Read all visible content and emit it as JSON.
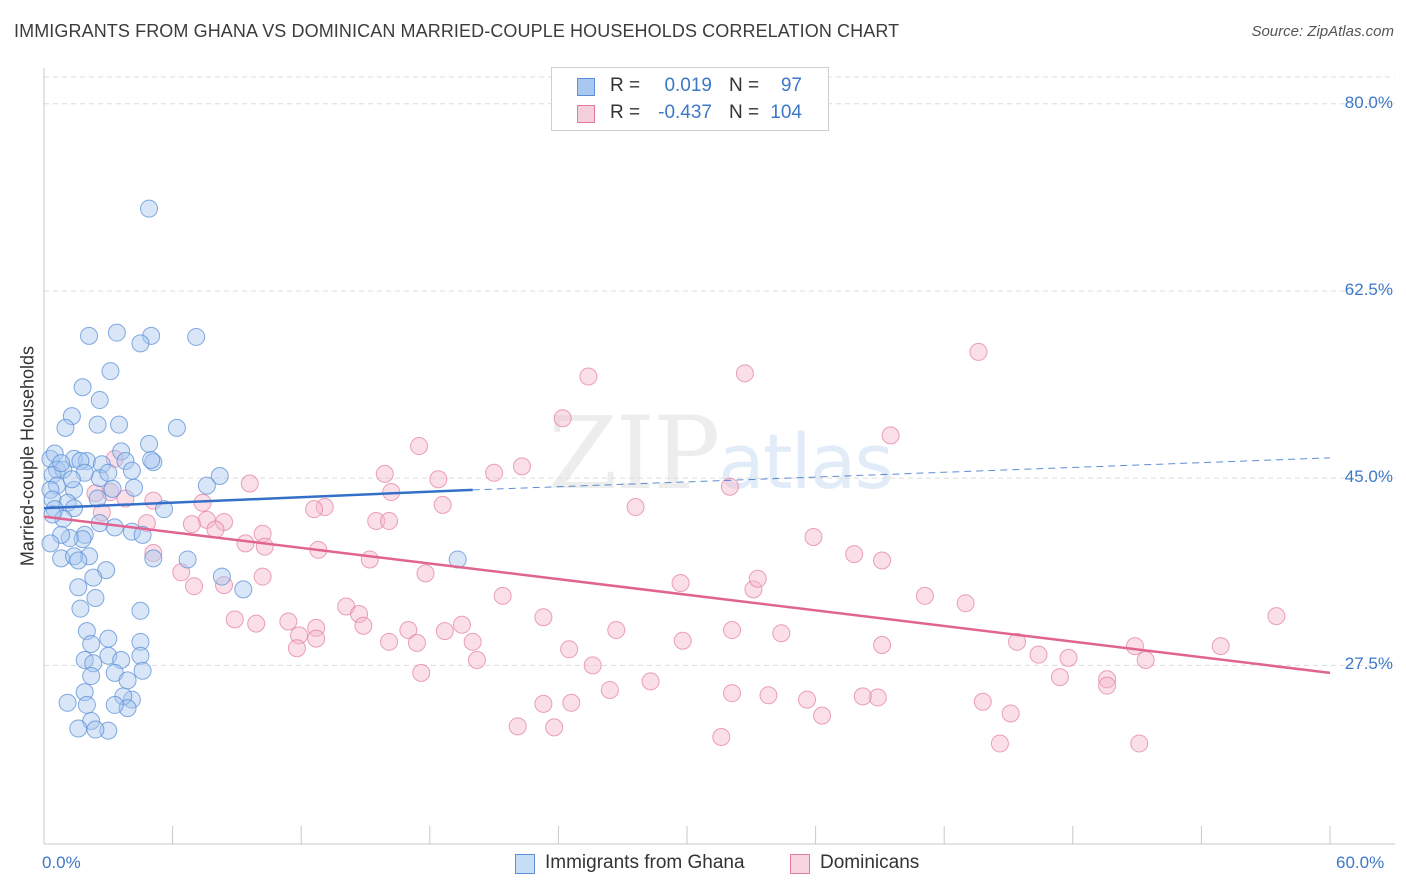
{
  "title": "IMMIGRANTS FROM GHANA VS DOMINICAN MARRIED-COUPLE HOUSEHOLDS CORRELATION CHART",
  "source": "Source: ZipAtlas.com",
  "watermark": {
    "zip": "ZIP",
    "atlas": "atlas"
  },
  "legend": {
    "rows": [
      {
        "r_label": "R =",
        "r_value": "0.019",
        "n_label": "N =",
        "n_value": "97",
        "color": "#a8c8ef"
      },
      {
        "r_label": "R =",
        "r_value": "-0.437",
        "n_label": "N =",
        "n_value": "104",
        "color": "#f5b8cc"
      }
    ]
  },
  "bottom_legend": [
    {
      "label": "Immigrants from Ghana",
      "color": "#a8c8ef"
    },
    {
      "label": "Dominicans",
      "color": "#f5b8cc"
    }
  ],
  "chart_data": {
    "type": "scatter",
    "title": "IMMIGRANTS FROM GHANA VS DOMINICAN MARRIED-COUPLE HOUSEHOLDS CORRELATION CHART",
    "xlabel": "",
    "ylabel": "Married-couple Households",
    "xlim": [
      0,
      60
    ],
    "ylim": [
      10.8,
      82.5
    ],
    "x_tick_labels": [
      "0.0%",
      "60.0%"
    ],
    "y_ticks": [
      27.5,
      45.0,
      62.5,
      80.0
    ],
    "y_tick_labels": [
      "27.5%",
      "45.0%",
      "62.5%",
      "80.0%"
    ],
    "grid": true,
    "legend_position": "top-center",
    "colors": {
      "blue_fill": "#a8c8ef",
      "blue_edge": "#5b8fd6",
      "blue_line": "#3470c8",
      "pink_fill": "#f5b8cc",
      "pink_edge": "#e27aa0",
      "pink_line": "#e0648f"
    },
    "series": [
      {
        "name": "Immigrants from Ghana",
        "trend": {
          "x": [
            0,
            20
          ],
          "y": [
            42.2,
            43.9
          ],
          "dashed_to": [
            60,
            46.9
          ]
        },
        "points": [
          [
            4.9,
            70.2
          ],
          [
            3.4,
            58.6
          ],
          [
            2.1,
            58.3
          ],
          [
            5.0,
            58.3
          ],
          [
            7.1,
            58.2
          ],
          [
            4.5,
            57.6
          ],
          [
            3.1,
            55.0
          ],
          [
            1.8,
            53.5
          ],
          [
            2.6,
            52.3
          ],
          [
            1.3,
            50.8
          ],
          [
            2.5,
            50.0
          ],
          [
            3.5,
            50.0
          ],
          [
            1.0,
            49.7
          ],
          [
            6.2,
            49.7
          ],
          [
            4.9,
            48.2
          ],
          [
            3.6,
            47.5
          ],
          [
            1.4,
            46.8
          ],
          [
            2.0,
            46.6
          ],
          [
            1.7,
            46.6
          ],
          [
            0.3,
            46.8
          ],
          [
            3.8,
            46.6
          ],
          [
            5.1,
            46.5
          ],
          [
            2.7,
            46.3
          ],
          [
            0.6,
            45.8
          ],
          [
            0.9,
            45.8
          ],
          [
            4.1,
            45.7
          ],
          [
            0.4,
            45.3
          ],
          [
            8.2,
            45.2
          ],
          [
            2.6,
            45.0
          ],
          [
            4.2,
            44.1
          ],
          [
            0.6,
            44.3
          ],
          [
            0.3,
            43.9
          ],
          [
            1.4,
            43.9
          ],
          [
            3.2,
            44.0
          ],
          [
            7.6,
            44.3
          ],
          [
            0.4,
            43.0
          ],
          [
            2.5,
            43.1
          ],
          [
            1.1,
            42.7
          ],
          [
            1.4,
            42.2
          ],
          [
            5.6,
            42.1
          ],
          [
            0.5,
            42.1
          ],
          [
            0.9,
            41.2
          ],
          [
            4.1,
            40.0
          ],
          [
            0.4,
            41.6
          ],
          [
            2.6,
            40.8
          ],
          [
            1.9,
            39.7
          ],
          [
            1.8,
            39.3
          ],
          [
            1.2,
            39.4
          ],
          [
            0.8,
            39.7
          ],
          [
            3.3,
            40.4
          ],
          [
            4.6,
            39.7
          ],
          [
            0.3,
            38.9
          ],
          [
            2.1,
            37.7
          ],
          [
            6.7,
            37.4
          ],
          [
            0.8,
            37.5
          ],
          [
            1.4,
            37.7
          ],
          [
            2.9,
            36.4
          ],
          [
            1.6,
            37.3
          ],
          [
            5.1,
            37.5
          ],
          [
            2.3,
            35.7
          ],
          [
            1.6,
            34.8
          ],
          [
            8.3,
            35.8
          ],
          [
            2.4,
            33.8
          ],
          [
            1.7,
            32.8
          ],
          [
            4.5,
            32.6
          ],
          [
            2.0,
            30.7
          ],
          [
            3.0,
            30.0
          ],
          [
            2.2,
            29.5
          ],
          [
            4.5,
            29.7
          ],
          [
            3.0,
            28.4
          ],
          [
            1.9,
            28.0
          ],
          [
            3.6,
            28.0
          ],
          [
            4.5,
            28.4
          ],
          [
            2.3,
            27.7
          ],
          [
            4.6,
            27.0
          ],
          [
            2.2,
            26.5
          ],
          [
            3.3,
            26.8
          ],
          [
            3.9,
            26.1
          ],
          [
            1.9,
            25.0
          ],
          [
            4.1,
            24.3
          ],
          [
            3.7,
            24.6
          ],
          [
            2.0,
            23.8
          ],
          [
            1.1,
            24.0
          ],
          [
            3.9,
            23.5
          ],
          [
            3.3,
            23.8
          ],
          [
            2.2,
            22.3
          ],
          [
            1.6,
            21.6
          ],
          [
            3.0,
            21.4
          ],
          [
            2.4,
            21.5
          ],
          [
            19.3,
            37.4
          ],
          [
            9.3,
            34.6
          ],
          [
            0.5,
            47.3
          ],
          [
            0.8,
            46.4
          ],
          [
            1.9,
            45.5
          ],
          [
            1.3,
            44.9
          ],
          [
            3.0,
            45.5
          ],
          [
            5.0,
            46.7
          ]
        ]
      },
      {
        "name": "Dominicans",
        "trend": {
          "x": [
            0,
            60
          ],
          "y": [
            41.4,
            26.8
          ]
        },
        "points": [
          [
            43.6,
            56.8
          ],
          [
            32.7,
            54.8
          ],
          [
            25.4,
            54.5
          ],
          [
            24.2,
            50.6
          ],
          [
            39.5,
            49.0
          ],
          [
            17.5,
            48.0
          ],
          [
            22.3,
            46.1
          ],
          [
            21.0,
            45.5
          ],
          [
            15.9,
            45.4
          ],
          [
            3.3,
            46.8
          ],
          [
            18.4,
            44.9
          ],
          [
            9.6,
            44.5
          ],
          [
            32.0,
            44.2
          ],
          [
            3.1,
            43.7
          ],
          [
            2.4,
            43.6
          ],
          [
            16.2,
            43.7
          ],
          [
            3.8,
            43.1
          ],
          [
            5.1,
            42.9
          ],
          [
            7.4,
            42.7
          ],
          [
            18.6,
            42.5
          ],
          [
            13.1,
            42.3
          ],
          [
            27.6,
            42.3
          ],
          [
            12.6,
            42.1
          ],
          [
            2.7,
            41.8
          ],
          [
            15.5,
            41.0
          ],
          [
            16.1,
            41.0
          ],
          [
            7.6,
            41.1
          ],
          [
            8.4,
            40.9
          ],
          [
            4.8,
            40.8
          ],
          [
            6.9,
            40.7
          ],
          [
            8.0,
            40.2
          ],
          [
            10.2,
            39.8
          ],
          [
            35.9,
            39.5
          ],
          [
            9.4,
            38.9
          ],
          [
            10.3,
            38.6
          ],
          [
            12.8,
            38.3
          ],
          [
            5.1,
            38.0
          ],
          [
            37.8,
            37.9
          ],
          [
            39.1,
            37.3
          ],
          [
            15.2,
            37.4
          ],
          [
            6.4,
            36.2
          ],
          [
            10.2,
            35.8
          ],
          [
            17.8,
            36.1
          ],
          [
            33.1,
            34.6
          ],
          [
            29.7,
            35.2
          ],
          [
            7.0,
            34.9
          ],
          [
            8.4,
            35.0
          ],
          [
            33.3,
            35.6
          ],
          [
            41.1,
            34.0
          ],
          [
            43.0,
            33.3
          ],
          [
            21.4,
            34.0
          ],
          [
            14.1,
            33.0
          ],
          [
            14.7,
            32.3
          ],
          [
            23.3,
            32.0
          ],
          [
            12.7,
            31.0
          ],
          [
            8.9,
            31.8
          ],
          [
            9.9,
            31.4
          ],
          [
            14.9,
            31.2
          ],
          [
            19.5,
            31.3
          ],
          [
            11.4,
            31.6
          ],
          [
            17.0,
            30.8
          ],
          [
            26.7,
            30.8
          ],
          [
            18.7,
            30.7
          ],
          [
            11.9,
            30.3
          ],
          [
            12.7,
            30.0
          ],
          [
            16.1,
            29.7
          ],
          [
            20.0,
            29.7
          ],
          [
            17.4,
            29.6
          ],
          [
            29.8,
            29.8
          ],
          [
            34.4,
            30.5
          ],
          [
            39.1,
            29.4
          ],
          [
            11.8,
            29.1
          ],
          [
            24.5,
            29.0
          ],
          [
            50.9,
            29.3
          ],
          [
            32.1,
            30.8
          ],
          [
            47.8,
            28.2
          ],
          [
            20.2,
            28.0
          ],
          [
            45.4,
            29.7
          ],
          [
            46.4,
            28.5
          ],
          [
            25.6,
            27.5
          ],
          [
            17.6,
            26.8
          ],
          [
            51.4,
            28.0
          ],
          [
            49.6,
            26.2
          ],
          [
            28.3,
            26.0
          ],
          [
            26.4,
            25.2
          ],
          [
            35.6,
            24.3
          ],
          [
            32.1,
            24.9
          ],
          [
            38.9,
            24.5
          ],
          [
            49.6,
            25.6
          ],
          [
            45.1,
            23.0
          ],
          [
            23.3,
            23.9
          ],
          [
            47.4,
            26.4
          ],
          [
            38.2,
            24.6
          ],
          [
            43.8,
            24.1
          ],
          [
            54.9,
            29.3
          ],
          [
            24.6,
            24.0
          ],
          [
            33.8,
            24.7
          ],
          [
            44.6,
            20.2
          ],
          [
            22.1,
            21.8
          ],
          [
            23.8,
            21.7
          ],
          [
            31.6,
            20.8
          ],
          [
            36.3,
            22.8
          ],
          [
            51.1,
            20.2
          ],
          [
            57.5,
            32.1
          ]
        ]
      }
    ]
  }
}
